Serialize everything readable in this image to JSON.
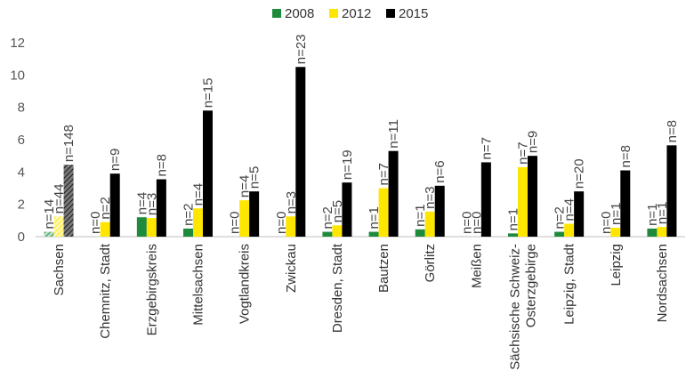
{
  "chart_data": {
    "type": "bar",
    "categories": [
      "Sachsen",
      "Chemnitz, Stadt",
      "Erzgebirgskreis",
      "Mittelsachsen",
      "Vogtlandkreis",
      "Zwickau",
      "Dresden, Stadt",
      "Bautzen",
      "Görlitz",
      "Meißen",
      "Sächsische Schweiz-Osterzgebirge",
      "Leipzig, Stadt",
      "Leipzig",
      "Nordsachsen"
    ],
    "category_lines": [
      [
        "Sachsen"
      ],
      [
        "Chemnitz, Stadt"
      ],
      [
        "Erzgebirgskreis"
      ],
      [
        "Mittelsachsen"
      ],
      [
        "Vogtlandkreis"
      ],
      [
        "Zwickau"
      ],
      [
        "Dresden, Stadt"
      ],
      [
        "Bautzen"
      ],
      [
        "Görlitz"
      ],
      [
        "Meißen"
      ],
      [
        "Sächsische Schweiz-",
        "Osterzgebirge"
      ],
      [
        "Leipzig, Stadt"
      ],
      [
        "Leipzig"
      ],
      [
        "Nordsachsen"
      ]
    ],
    "series": [
      {
        "name": "2008",
        "color": "#1e8a3c",
        "values": [
          0.3,
          0,
          1.2,
          0.5,
          0,
          0,
          0.3,
          0.3,
          0.45,
          0,
          0.2,
          0.3,
          0,
          0.5
        ],
        "labels": [
          "n=14",
          "n=0",
          "n=4",
          "n=2",
          "n=0",
          "n=0",
          "n=2",
          "n=1",
          "n=1",
          "n=0",
          "n=1",
          "n=2",
          "n=0",
          "n=1"
        ]
      },
      {
        "name": "2012",
        "color": "#ffe600",
        "values": [
          1.25,
          0.9,
          1.15,
          1.75,
          2.25,
          1.25,
          0.7,
          3.0,
          1.55,
          0,
          4.3,
          0.8,
          0.55,
          0.6
        ],
        "labels": [
          "n=44",
          "n=2",
          "n=3",
          "n=4",
          "n=4",
          "n=3",
          "n=5",
          "n=7",
          "n=3",
          "n=0",
          "n=7",
          "n=4",
          "n=1",
          "n=1"
        ]
      },
      {
        "name": "2015",
        "color": "#000000",
        "values": [
          4.45,
          3.9,
          3.55,
          7.8,
          2.8,
          10.5,
          3.35,
          5.3,
          3.15,
          4.6,
          5.0,
          2.8,
          4.1,
          5.65
        ],
        "labels": [
          "n=148",
          "n=9",
          "n=8",
          "n=15",
          "n=5",
          "n=23",
          "n=19",
          "n=11",
          "n=6",
          "n=7",
          "n=9",
          "n=20",
          "n=8",
          "n=8"
        ]
      }
    ],
    "hatched_category": "Sachsen",
    "yticks": [
      0,
      2,
      4,
      6,
      8,
      10,
      12
    ],
    "ylim": [
      0,
      12
    ],
    "grid": false,
    "legend_position": "top-center"
  }
}
